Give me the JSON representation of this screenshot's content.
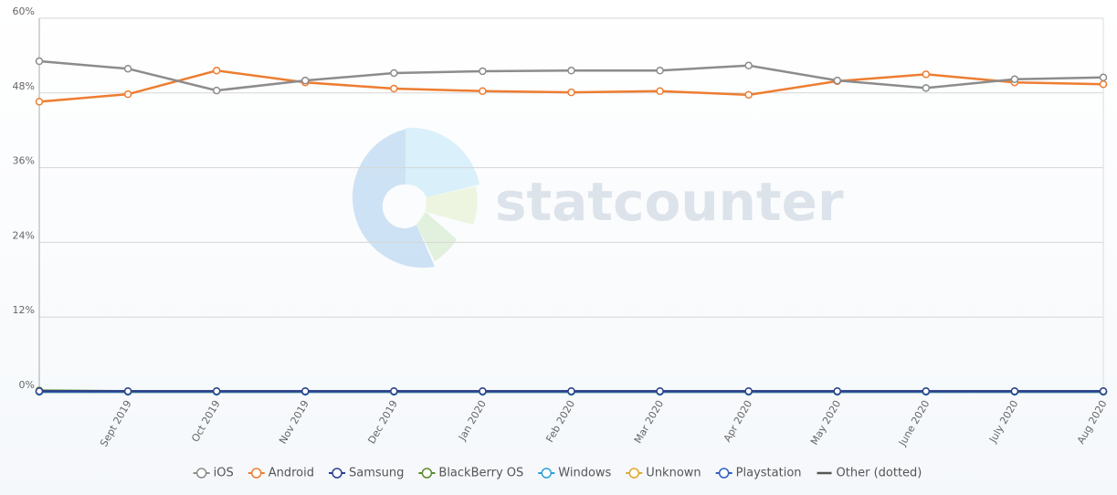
{
  "chart_data": {
    "type": "line",
    "watermark": "statcounter",
    "categories": [
      null,
      "Sept 2019",
      "Oct 2019",
      "Nov 2019",
      "Dec 2019",
      "Jan 2020",
      "Feb 2020",
      "Mar 2020",
      "Apr 2020",
      "May 2020",
      "June 2020",
      "July 2020",
      "Aug 2020"
    ],
    "series": [
      {
        "name": "iOS",
        "color": "#8c8c8c",
        "values": [
          53.1,
          51.9,
          48.4,
          50.0,
          51.2,
          51.5,
          51.6,
          51.6,
          52.4,
          50.0,
          48.8,
          50.2,
          50.5
        ]
      },
      {
        "name": "Android",
        "color": "#ed7d31",
        "values": [
          46.6,
          47.8,
          51.6,
          49.7,
          48.7,
          48.3,
          48.1,
          48.3,
          47.7,
          49.9,
          51.0,
          49.7,
          49.4
        ]
      },
      {
        "name": "Samsung",
        "color": "#2b3f8f",
        "values": [
          0.1,
          0.1,
          0.1,
          0.1,
          0.1,
          0.1,
          0.1,
          0.1,
          0.1,
          0.1,
          0.1,
          0.1,
          0.1
        ]
      },
      {
        "name": "BlackBerry OS",
        "color": "#5c8a2e",
        "values": [
          0.2,
          0.1,
          0.1,
          0.1,
          0.1,
          0.1,
          0.1,
          0.1,
          0.1,
          0.1,
          0.1,
          0.1,
          0.1
        ]
      },
      {
        "name": "Windows",
        "color": "#2e9fd8",
        "values": [
          0,
          0,
          0,
          0,
          0,
          0,
          0,
          0,
          0,
          0,
          0,
          0,
          0
        ]
      },
      {
        "name": "Unknown",
        "color": "#e0a82e",
        "values": [
          0,
          0,
          0,
          0,
          0,
          0,
          0,
          0,
          0,
          0,
          0,
          0,
          0
        ]
      },
      {
        "name": "Playstation",
        "color": "#2f5fc4",
        "values": [
          0,
          0,
          0,
          0,
          0,
          0,
          0,
          0,
          0,
          0,
          0,
          0,
          0
        ]
      },
      {
        "name": "Other (dotted)",
        "color": "#555555",
        "dashed": true,
        "values": [
          0,
          0,
          0,
          0,
          0,
          0,
          0,
          0,
          0,
          0,
          0,
          0,
          0
        ]
      }
    ],
    "ylim": [
      0,
      60
    ],
    "yticks": [
      {
        "value": 0,
        "label": "0%"
      },
      {
        "value": 12,
        "label": "12%"
      },
      {
        "value": 24,
        "label": "24%"
      },
      {
        "value": 36,
        "label": "36%"
      },
      {
        "value": 48,
        "label": "48%"
      },
      {
        "value": 60,
        "label": "60%"
      }
    ],
    "grid": true
  }
}
